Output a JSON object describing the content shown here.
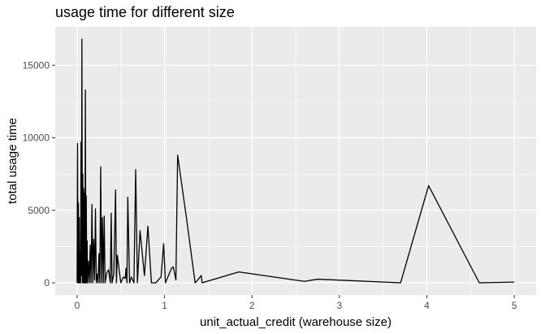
{
  "chart_data": {
    "type": "line",
    "title": "usage time for different size",
    "xlabel": "unit_actual_credit (warehouse size)",
    "ylabel": "total usage time",
    "xlim": [
      -0.25,
      5.25
    ],
    "ylim": [
      -840,
      17650
    ],
    "xticks": [
      0,
      1,
      2,
      3,
      4,
      5
    ],
    "xtick_labels": [
      "0",
      "1",
      "2",
      "3",
      "4",
      "5"
    ],
    "yticks": [
      0,
      5000,
      10000,
      15000
    ],
    "ytick_labels": [
      "0",
      "5000",
      "10000",
      "15000"
    ],
    "grid": true,
    "legend": "none",
    "colors": {
      "panel": "#ebebeb",
      "grid": "#ffffff",
      "line": "#000000",
      "tick_text": "#4d4d4d"
    },
    "series": [
      {
        "values": [
          [
            0.0,
            0
          ],
          [
            0.005,
            9600
          ],
          [
            0.01,
            0
          ],
          [
            0.015,
            5500
          ],
          [
            0.02,
            0
          ],
          [
            0.025,
            4500
          ],
          [
            0.03,
            0
          ],
          [
            0.035,
            2000
          ],
          [
            0.04,
            0
          ],
          [
            0.045,
            9700
          ],
          [
            0.05,
            500
          ],
          [
            0.055,
            16800
          ],
          [
            0.06,
            0
          ],
          [
            0.065,
            7500
          ],
          [
            0.07,
            0
          ],
          [
            0.075,
            6500
          ],
          [
            0.08,
            0
          ],
          [
            0.085,
            6200
          ],
          [
            0.09,
            0
          ],
          [
            0.095,
            13300
          ],
          [
            0.1,
            0
          ],
          [
            0.105,
            6000
          ],
          [
            0.11,
            0
          ],
          [
            0.115,
            2900
          ],
          [
            0.12,
            0
          ],
          [
            0.13,
            1500
          ],
          [
            0.14,
            0
          ],
          [
            0.15,
            2600
          ],
          [
            0.16,
            0
          ],
          [
            0.17,
            5400
          ],
          [
            0.18,
            0
          ],
          [
            0.19,
            3000
          ],
          [
            0.2,
            200
          ],
          [
            0.21,
            5100
          ],
          [
            0.22,
            0
          ],
          [
            0.23,
            600
          ],
          [
            0.24,
            0
          ],
          [
            0.25,
            2000
          ],
          [
            0.26,
            0
          ],
          [
            0.27,
            8000
          ],
          [
            0.28,
            0
          ],
          [
            0.29,
            4500
          ],
          [
            0.3,
            0
          ],
          [
            0.31,
            4600
          ],
          [
            0.32,
            0
          ],
          [
            0.34,
            700
          ],
          [
            0.36,
            900
          ],
          [
            0.38,
            0
          ],
          [
            0.39,
            4800
          ],
          [
            0.4,
            0
          ],
          [
            0.42,
            600
          ],
          [
            0.44,
            6400
          ],
          [
            0.45,
            0
          ],
          [
            0.46,
            1900
          ],
          [
            0.5,
            0
          ],
          [
            0.53,
            400
          ],
          [
            0.55,
            300
          ],
          [
            0.56,
            1000
          ],
          [
            0.57,
            0
          ],
          [
            0.58,
            5900
          ],
          [
            0.6,
            0
          ],
          [
            0.62,
            400
          ],
          [
            0.65,
            0
          ],
          [
            0.67,
            7800
          ],
          [
            0.69,
            0
          ],
          [
            0.72,
            3600
          ],
          [
            0.77,
            500
          ],
          [
            0.81,
            3900
          ],
          [
            0.85,
            0
          ],
          [
            0.9,
            0
          ],
          [
            0.96,
            400
          ],
          [
            0.99,
            2700
          ],
          [
            1.0,
            1400
          ],
          [
            1.01,
            0
          ],
          [
            1.08,
            1000
          ],
          [
            1.1,
            1100
          ],
          [
            1.13,
            200
          ],
          [
            1.15,
            8800
          ],
          [
            1.25,
            4500
          ],
          [
            1.35,
            0
          ],
          [
            1.38,
            200
          ],
          [
            1.42,
            500
          ],
          [
            1.43,
            0
          ],
          [
            1.85,
            750
          ],
          [
            2.6,
            100
          ],
          [
            2.75,
            250
          ],
          [
            3.7,
            0
          ],
          [
            4.02,
            6700
          ],
          [
            4.6,
            0
          ],
          [
            5.0,
            50
          ]
        ]
      }
    ]
  }
}
